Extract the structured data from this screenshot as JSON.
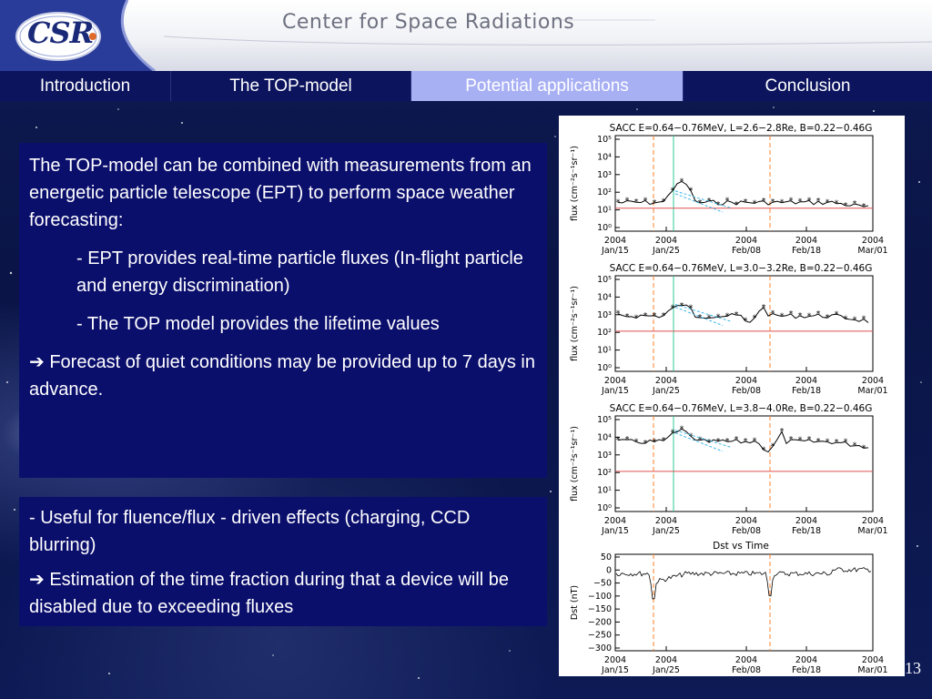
{
  "header": {
    "logo_text": "CSR",
    "title": "Center for Space Radiations"
  },
  "nav": {
    "tabs": [
      {
        "label": "Introduction",
        "active": false
      },
      {
        "label": "The TOP-model",
        "active": false
      },
      {
        "label": "Potential applications",
        "active": true
      },
      {
        "label": "Conclusion",
        "active": false
      }
    ]
  },
  "box1": {
    "intro": "The TOP-model can be combined with measurements from an energetic particle telescope (EPT) to perform space weather forecasting:",
    "point1": "- EPT provides real-time particle fluxes (In-flight particle and energy discrimination)",
    "point2": "- The TOP model provides the lifetime values",
    "conclusion": "Forecast of quiet conditions may be provided up to 7 days in advance."
  },
  "box2": {
    "line1": "- Useful for fluence/flux - driven effects (charging, CCD blurring)",
    "line2": "Estimation of the time fraction during that a device will be disabled due to exceeding  fluxes"
  },
  "arrow_glyph": "➔",
  "figure": {
    "x_ticks": [
      {
        "year": "2004",
        "date": "Jan/15"
      },
      {
        "year": "2004",
        "date": "Jan/25"
      },
      {
        "year": "2004",
        "date": "Feb/08"
      },
      {
        "year": "2004",
        "date": "Feb/18"
      },
      {
        "year": "2004",
        "date": "Mar/01"
      }
    ],
    "flux_ylabel": "flux (cm⁻²s⁻¹sr⁻¹)",
    "flux_ticks": [
      "10⁵",
      "10⁴",
      "10³",
      "10²",
      "10¹",
      "10⁰"
    ],
    "panels": [
      {
        "title": "SACC E=0.64−0.76MeV, L=2.6−2.8Re, B=0.22−0.46G"
      },
      {
        "title": "SACC E=0.64−0.76MeV, L=3.0−3.2Re, B=0.22−0.46G"
      },
      {
        "title": "SACC E=0.64−0.76MeV, L=3.8−4.0Re, B=0.22−0.46G"
      }
    ],
    "dst": {
      "title": "Dst vs Time",
      "ylabel": "Dst (nT)",
      "ticks": [
        "50",
        "0",
        "−50",
        "−100",
        "−150",
        "−200",
        "−250",
        "−300"
      ]
    },
    "colors": {
      "threshold": "#e05050",
      "event": "#ff7f2a",
      "marker": "#2ec89a",
      "fit": "#40b8e8",
      "data": "#000000"
    }
  },
  "page_number": "13"
}
